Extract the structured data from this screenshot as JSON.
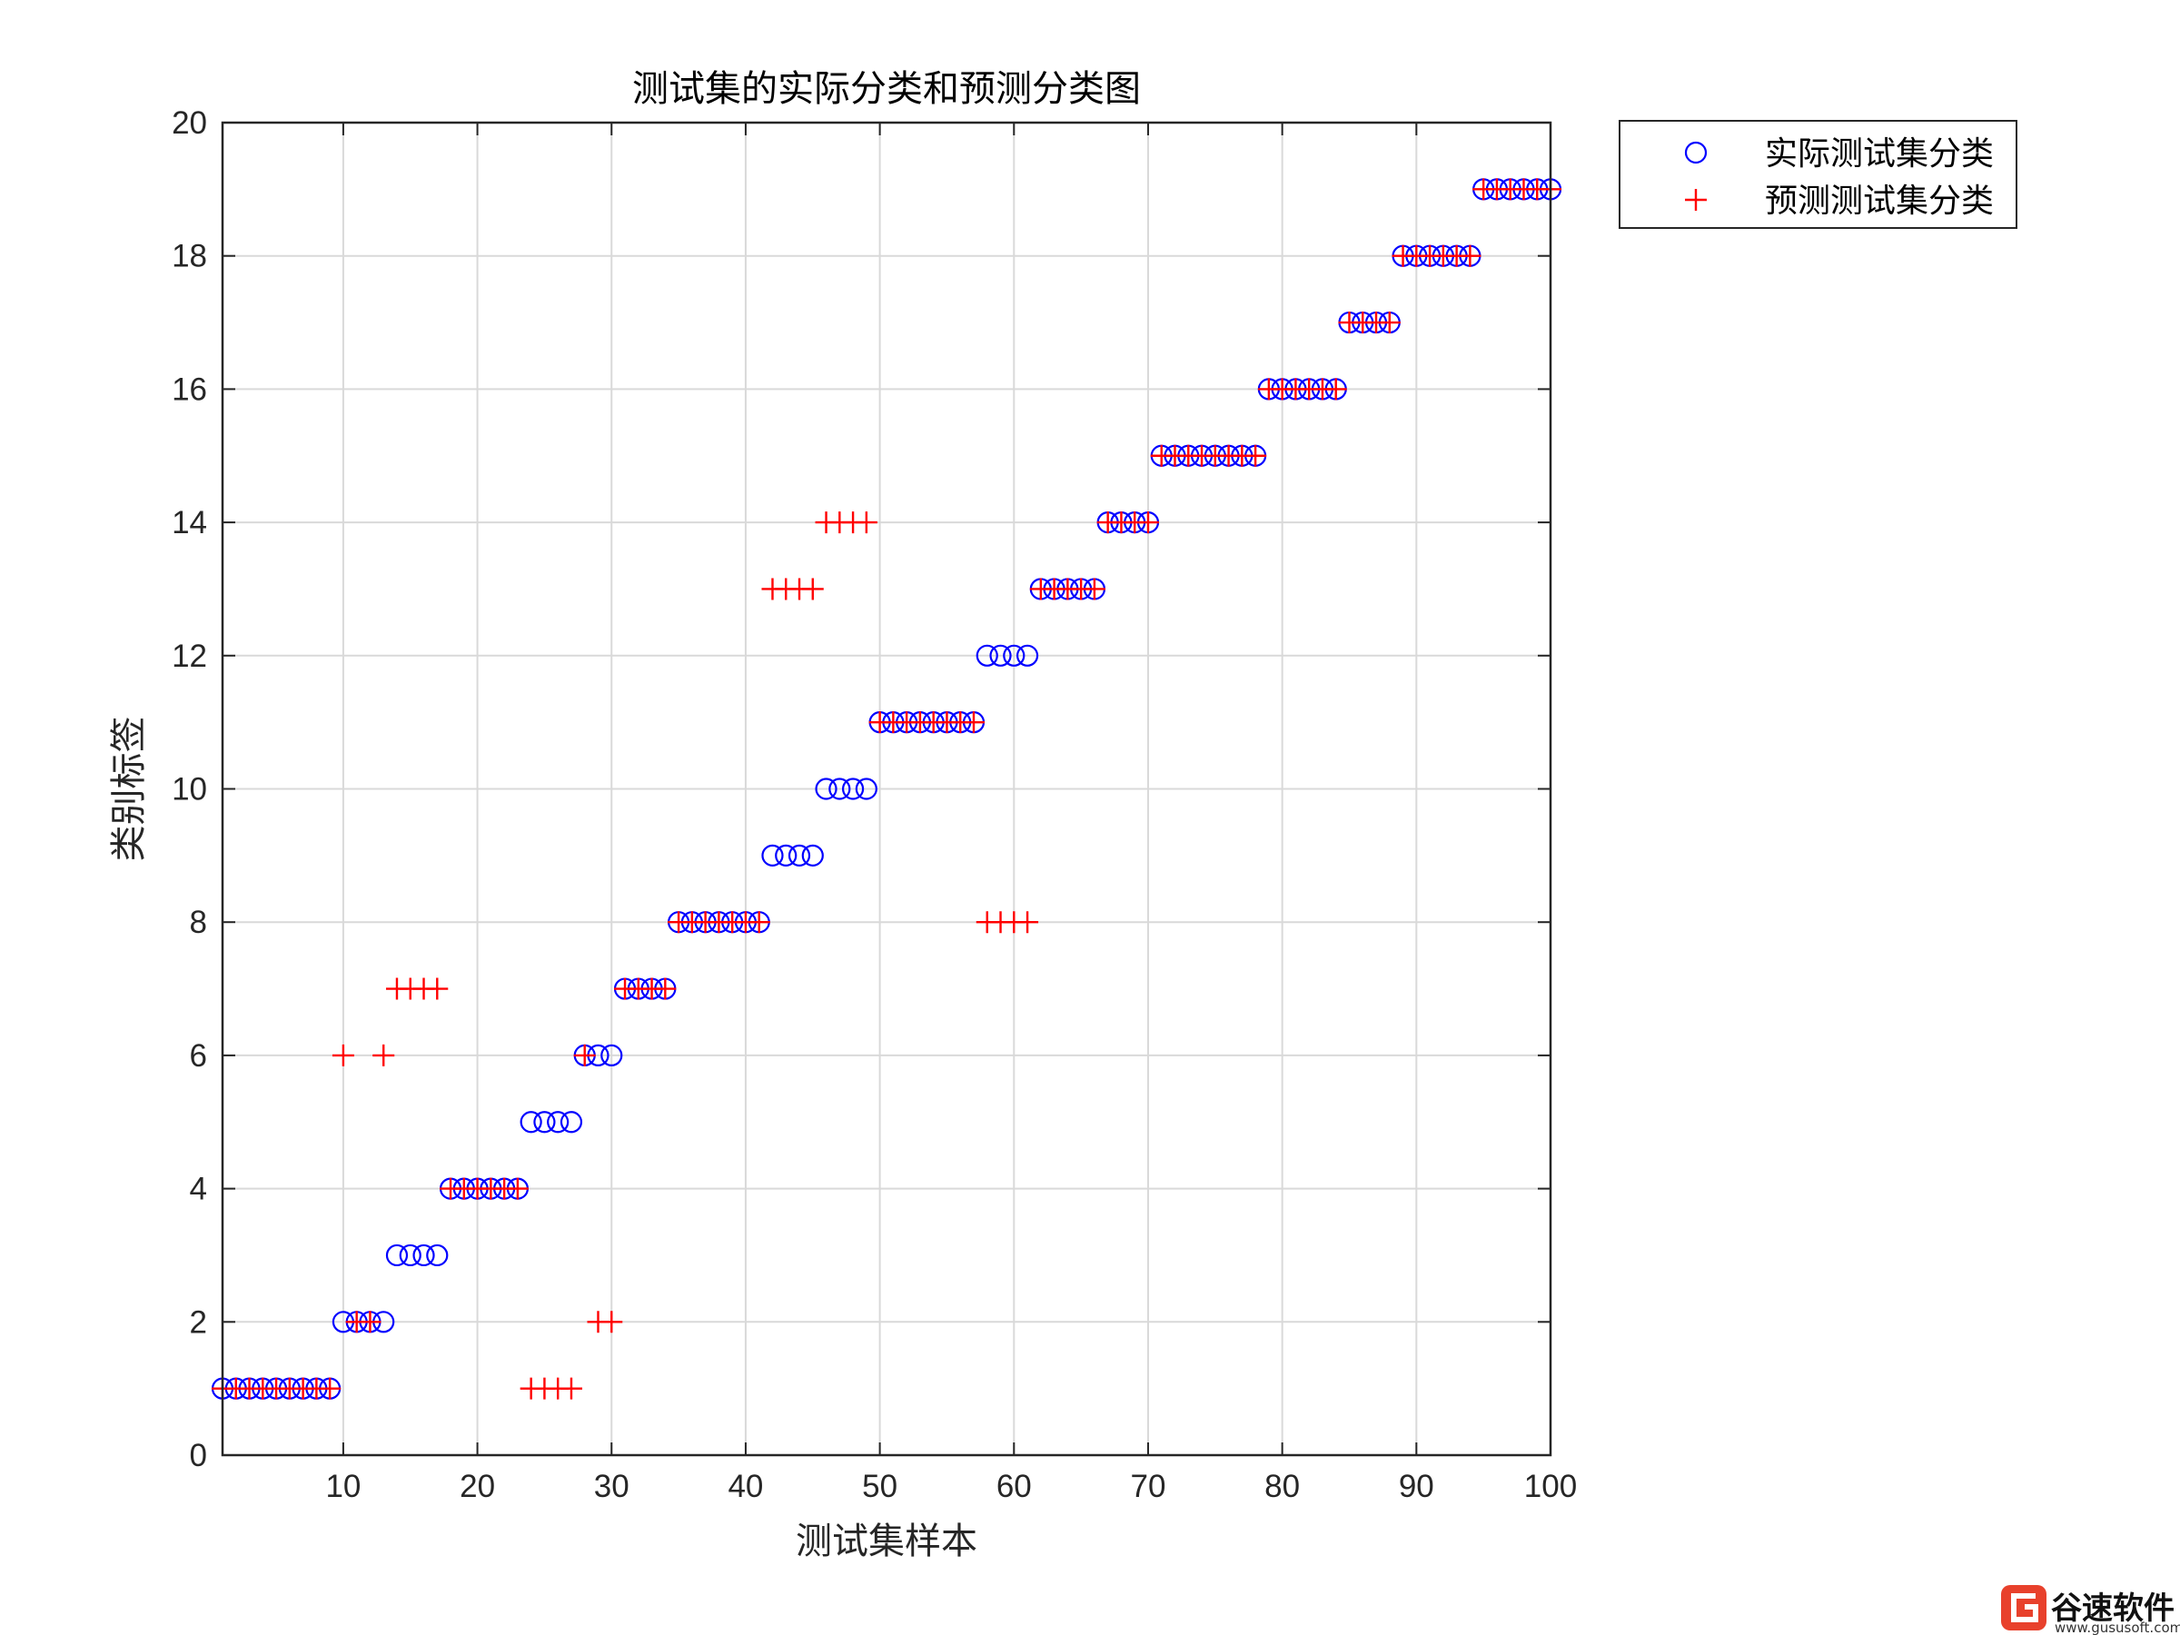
{
  "chart_data": {
    "type": "scatter",
    "title": "测试集的实际分类和预测分类图",
    "xlabel": "测试集样本",
    "ylabel": "类别标签",
    "xlim": [
      1,
      100
    ],
    "ylim": [
      0,
      20
    ],
    "xticks": [
      10,
      20,
      30,
      40,
      50,
      60,
      70,
      80,
      90,
      100
    ],
    "yticks": [
      0,
      2,
      4,
      6,
      8,
      10,
      12,
      14,
      16,
      18,
      20
    ],
    "grid": true,
    "legend_position": "outside-top-right",
    "series": [
      {
        "name": "实际测试集分类",
        "marker": "circle",
        "color": "#0000ff",
        "x": [
          1,
          2,
          3,
          4,
          5,
          6,
          7,
          8,
          9,
          10,
          11,
          12,
          13,
          14,
          15,
          16,
          17,
          18,
          19,
          20,
          21,
          22,
          23,
          24,
          25,
          26,
          27,
          28,
          29,
          30,
          31,
          32,
          33,
          34,
          35,
          36,
          37,
          38,
          39,
          40,
          41,
          42,
          43,
          44,
          45,
          46,
          47,
          48,
          49,
          50,
          51,
          52,
          53,
          54,
          55,
          56,
          57,
          58,
          59,
          60,
          61,
          62,
          63,
          64,
          65,
          66,
          67,
          68,
          69,
          70,
          71,
          72,
          73,
          74,
          75,
          76,
          77,
          78,
          79,
          80,
          81,
          82,
          83,
          84,
          85,
          86,
          87,
          88,
          89,
          90,
          91,
          92,
          93,
          94,
          95,
          96,
          97,
          98,
          99,
          100
        ],
        "y": [
          1,
          1,
          1,
          1,
          1,
          1,
          1,
          1,
          1,
          2,
          2,
          2,
          2,
          3,
          3,
          3,
          3,
          4,
          4,
          4,
          4,
          4,
          4,
          5,
          5,
          5,
          5,
          6,
          6,
          6,
          7,
          7,
          7,
          7,
          8,
          8,
          8,
          8,
          8,
          8,
          8,
          9,
          9,
          9,
          9,
          10,
          10,
          10,
          10,
          11,
          11,
          11,
          11,
          11,
          11,
          11,
          11,
          12,
          12,
          12,
          12,
          13,
          13,
          13,
          13,
          13,
          14,
          14,
          14,
          14,
          15,
          15,
          15,
          15,
          15,
          15,
          15,
          15,
          16,
          16,
          16,
          16,
          16,
          16,
          17,
          17,
          17,
          17,
          18,
          18,
          18,
          18,
          18,
          18,
          19,
          19,
          19,
          19,
          19,
          19
        ]
      },
      {
        "name": "预测测试集分类",
        "marker": "plus",
        "color": "#ff0000",
        "x": [
          1,
          2,
          3,
          4,
          5,
          6,
          7,
          8,
          9,
          10,
          11,
          12,
          13,
          14,
          15,
          16,
          17,
          18,
          19,
          20,
          21,
          22,
          23,
          24,
          25,
          26,
          27,
          28,
          29,
          30,
          31,
          32,
          33,
          34,
          35,
          36,
          37,
          38,
          39,
          40,
          41,
          42,
          43,
          44,
          45,
          46,
          47,
          48,
          49,
          50,
          51,
          52,
          53,
          54,
          55,
          56,
          57,
          58,
          59,
          60,
          61,
          62,
          63,
          64,
          65,
          66,
          67,
          68,
          69,
          70,
          71,
          72,
          73,
          74,
          75,
          76,
          77,
          78,
          79,
          80,
          81,
          82,
          83,
          84,
          85,
          86,
          87,
          88,
          89,
          90,
          91,
          92,
          93,
          94,
          95,
          96,
          97,
          98,
          99,
          100
        ],
        "y": [
          1,
          1,
          1,
          1,
          1,
          1,
          1,
          1,
          1,
          6,
          2,
          2,
          6,
          7,
          7,
          7,
          7,
          4,
          4,
          4,
          4,
          4,
          4,
          1,
          1,
          1,
          1,
          6,
          2,
          2,
          7,
          7,
          7,
          7,
          8,
          8,
          8,
          8,
          8,
          8,
          8,
          13,
          13,
          13,
          13,
          14,
          14,
          14,
          14,
          11,
          11,
          11,
          11,
          11,
          11,
          11,
          11,
          8,
          8,
          8,
          8,
          13,
          13,
          13,
          13,
          13,
          14,
          14,
          14,
          14,
          15,
          15,
          15,
          15,
          15,
          15,
          15,
          15,
          16,
          16,
          16,
          16,
          16,
          16,
          17,
          17,
          17,
          17,
          18,
          18,
          18,
          18,
          18,
          18,
          19,
          19,
          19,
          19,
          19,
          19
        ]
      }
    ]
  },
  "watermark": {
    "logo_text": "谷速软件",
    "url": "www.gususoft.com"
  }
}
